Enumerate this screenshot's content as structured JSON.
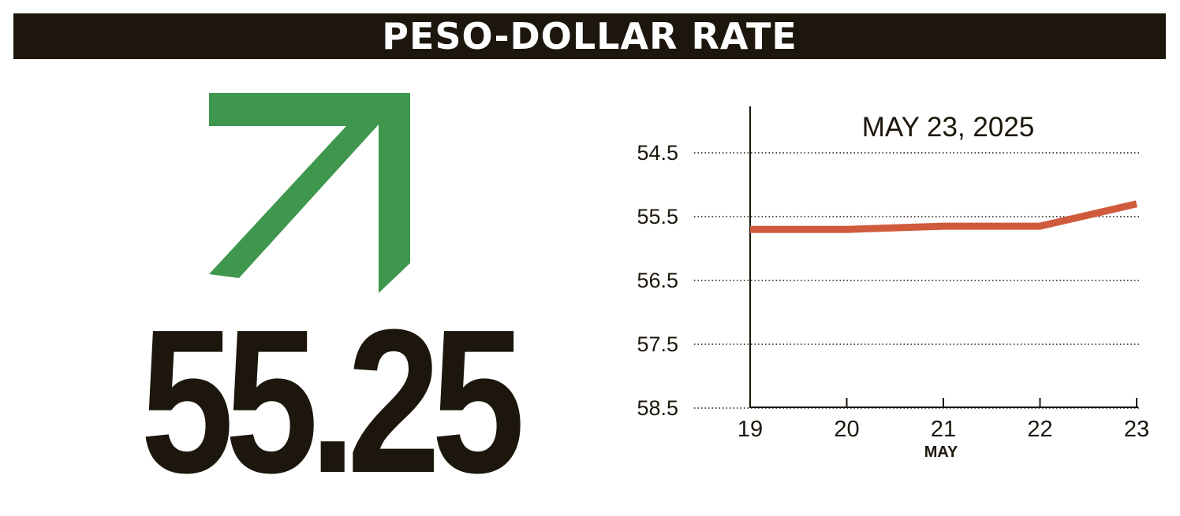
{
  "header": {
    "title": "PESO-DOLLAR RATE"
  },
  "indicator": {
    "direction": "up",
    "icon": "arrow-up-right-icon",
    "color": "#3f974d"
  },
  "rate": {
    "value": "55.25"
  },
  "colors": {
    "header_bg": "#1c160c",
    "text": "#1c160c",
    "line": "#d05a3c",
    "arrow": "#3f974d"
  },
  "chart_data": {
    "type": "line",
    "title": "MAY 23, 2025",
    "xlabel": "MAY",
    "ylabel": "",
    "x": [
      "19",
      "20",
      "21",
      "22",
      "23"
    ],
    "series": [
      {
        "values": [
          55.7,
          55.7,
          55.65,
          55.65,
          55.3
        ]
      }
    ],
    "y_ticks": [
      "54.5",
      "55.5",
      "56.5",
      "57.5",
      "58.5"
    ],
    "ylim": [
      53.8,
      58.5
    ],
    "y_inverted": true,
    "grid": "horizontal-dotted",
    "legend": "none"
  }
}
